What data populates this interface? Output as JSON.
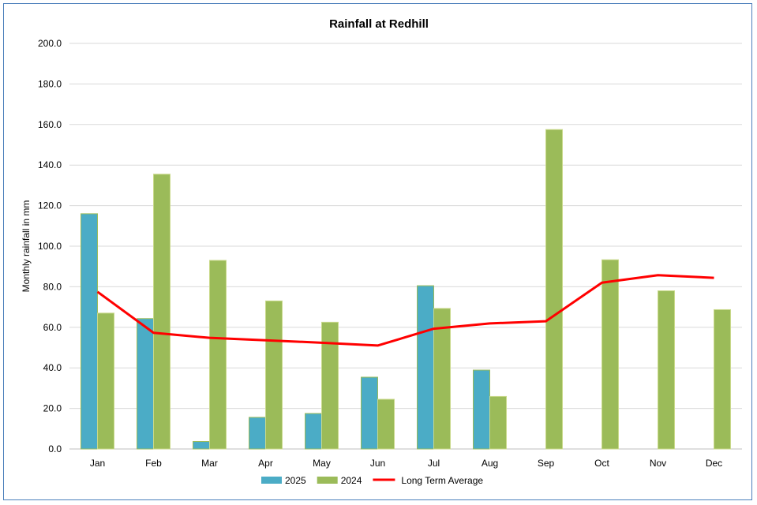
{
  "chart_data": {
    "type": "bar",
    "title": "Rainfall at Redhill",
    "xlabel": "",
    "ylabel": "Monthly rainfall in mm",
    "ylim": [
      0,
      200
    ],
    "yticks": [
      "0.0",
      "20.0",
      "40.0",
      "60.0",
      "80.0",
      "100.0",
      "120.0",
      "140.0",
      "160.0",
      "180.0",
      "200.0"
    ],
    "grid": true,
    "legend_position": "bottom",
    "categories": [
      "Jan",
      "Feb",
      "Mar",
      "Apr",
      "May",
      "Jun",
      "Jul",
      "Aug",
      "Sep",
      "Oct",
      "Nov",
      "Dec"
    ],
    "series": [
      {
        "name": "2025",
        "type": "bar",
        "color": "#4bacc6",
        "values": [
          116.0,
          64.3,
          3.7,
          15.6,
          17.5,
          35.4,
          80.5,
          38.9,
          null,
          null,
          null,
          null
        ]
      },
      {
        "name": "2024",
        "type": "bar",
        "color": "#9bbb59",
        "values": [
          67.0,
          135.5,
          93.0,
          73.0,
          62.5,
          24.5,
          69.3,
          25.9,
          157.5,
          93.3,
          78.0,
          68.7
        ]
      },
      {
        "name": "Long Term Average",
        "type": "line",
        "color": "#ff0000",
        "values": [
          77.5,
          57.3,
          54.8,
          53.6,
          52.4,
          51.0,
          59.3,
          61.9,
          63.0,
          82.0,
          85.7,
          84.4
        ]
      }
    ]
  }
}
